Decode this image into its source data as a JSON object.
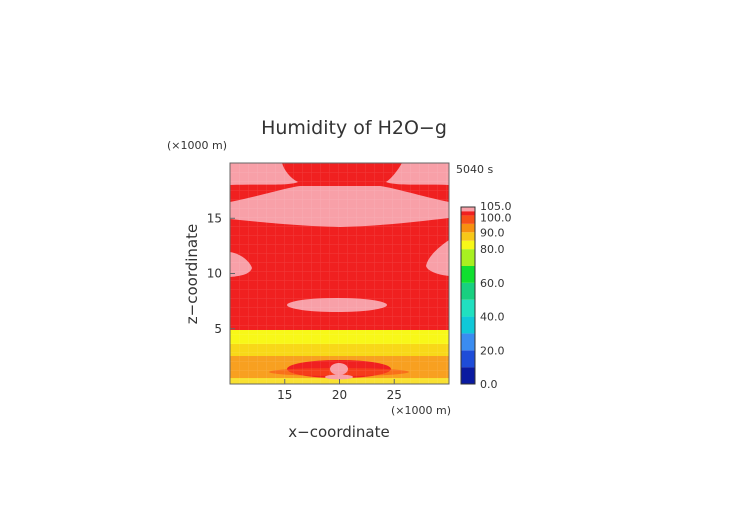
{
  "chart_data": {
    "type": "heatmap",
    "title": "Humidity of H2O−g",
    "time_label": "5040 s",
    "xlabel": "x−coordinate",
    "ylabel": "z−coordinate",
    "x_unit": "(×1000 m)",
    "y_unit": "(×1000 m)",
    "xlim": [
      10,
      30
    ],
    "ylim": [
      0,
      20
    ],
    "x_ticks": [
      15,
      20,
      25
    ],
    "y_ticks": [
      5,
      10,
      15
    ],
    "colorbar": {
      "levels": [
        {
          "value": 0.0,
          "color": "#0a1aa0"
        },
        {
          "value": 10.0,
          "color": "#1e4cd8"
        },
        {
          "value": 20.0,
          "color": "#3a8cf0"
        },
        {
          "value": 30.0,
          "color": "#10c8d8"
        },
        {
          "value": 40.0,
          "color": "#20e0c0"
        },
        {
          "value": 50.0,
          "color": "#18d080"
        },
        {
          "value": 60.0,
          "color": "#10e030"
        },
        {
          "value": 70.0,
          "color": "#a8f020"
        },
        {
          "value": 80.0,
          "color": "#f8f818"
        },
        {
          "value": 85.0,
          "color": "#f8c818"
        },
        {
          "value": 90.0,
          "color": "#f89010"
        },
        {
          "value": 95.0,
          "color": "#f85018"
        },
        {
          "value": 100.0,
          "color": "#f02020"
        },
        {
          "value": 102.5,
          "color": "#f8a0a8"
        },
        {
          "value": 105.0,
          "color": "#ffffff"
        }
      ],
      "labels": [
        "105.0",
        "100.0",
        "90.0",
        "80.0",
        "60.0",
        "40.0",
        "20.0",
        "0.0"
      ]
    },
    "field": {
      "background_range": "100.0–102.5",
      "background_color": "#f02020",
      "supersaturated_color": "#f8a0a8",
      "layers": [
        {
          "z_range": [
            0,
            1.5
          ],
          "value_range": "85.0–95.0",
          "color": "#f8a020"
        },
        {
          "z_range": [
            1.5,
            3.5
          ],
          "value_range": "80.0–90.0",
          "color": "#f8d818"
        },
        {
          "z_range": [
            3.5,
            4.8
          ],
          "value_range": "80.0–85.0",
          "color": "#f8f818"
        }
      ]
    }
  }
}
